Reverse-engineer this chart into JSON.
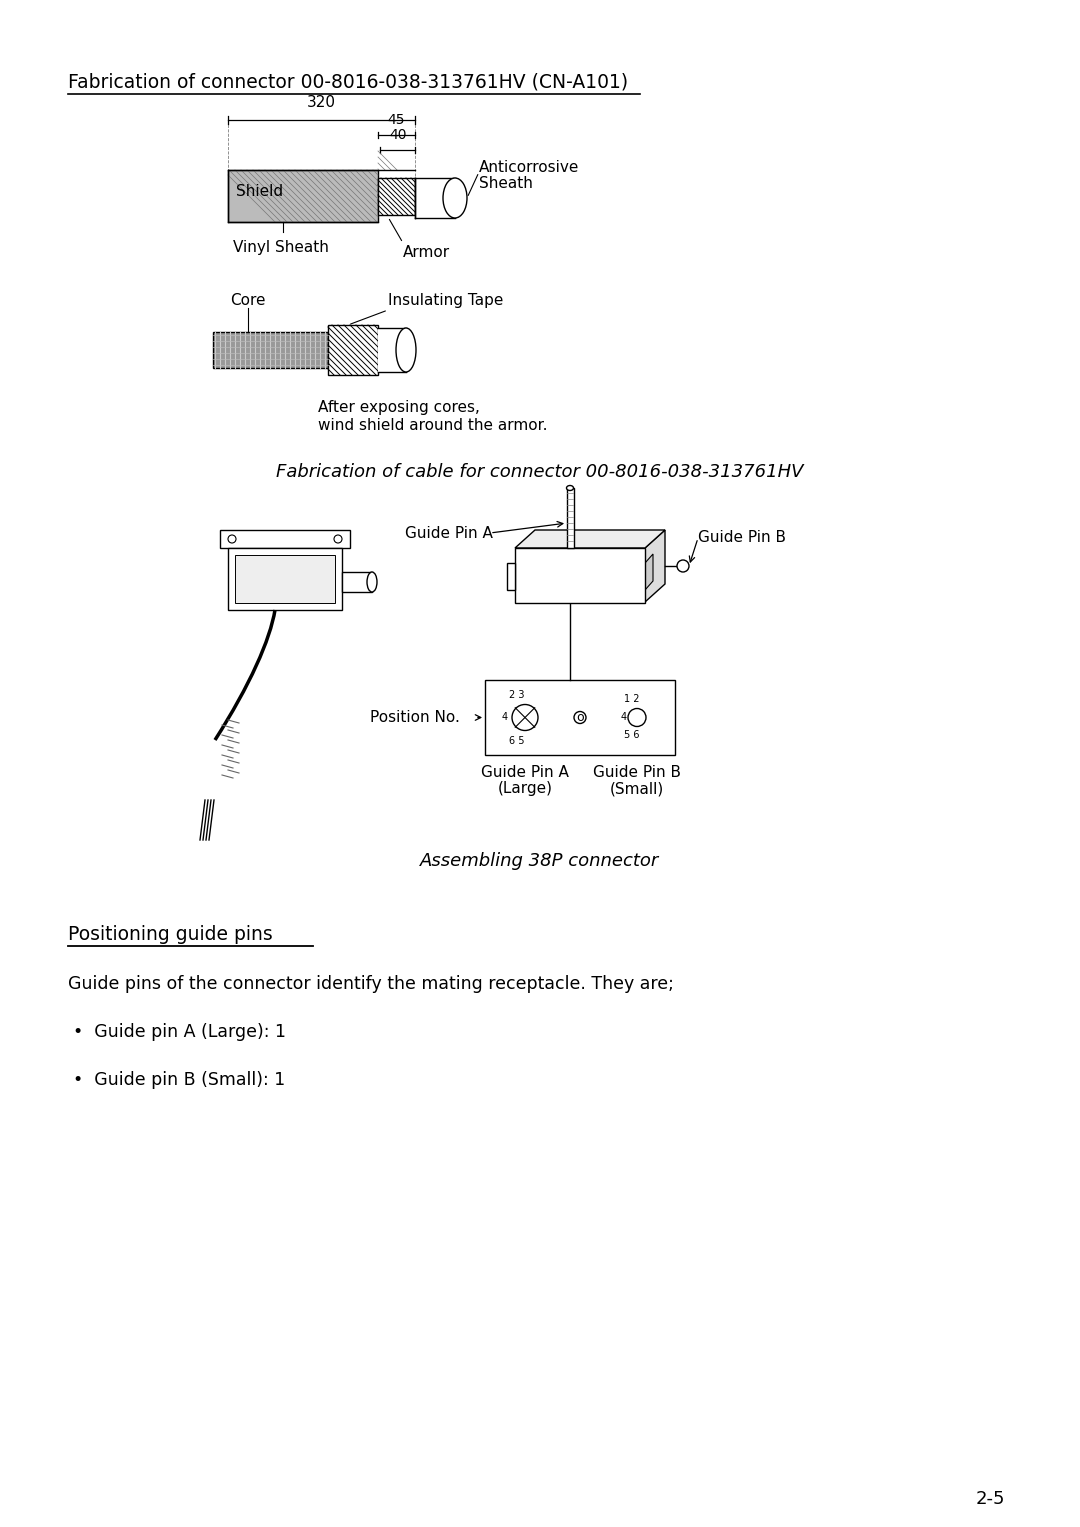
{
  "bg_color": "#ffffff",
  "title": "Fabrication of connector 00-8016-038-313761HV (CN-A101)",
  "cable_caption": "Fabrication of cable for connector 00-8016-038-313761HV",
  "assembling_caption": "Assembling 38P connector",
  "section2_title": "Positioning guide pins",
  "section2_body": "Guide pins of the connector identify the mating receptacle. They are;",
  "bullet1": "•  Guide pin A (Large): 1",
  "bullet2": "•  Guide pin B (Small): 1",
  "page_num": "2-5",
  "dim_320": "320",
  "dim_45": "45",
  "dim_40": "40",
  "label_shield": "Shield",
  "label_anticorrosive": "Anticorrosive",
  "label_sheath": "Sheath",
  "label_vinyl": "Vinyl Sheath",
  "label_armor": "Armor",
  "label_core": "Core",
  "label_insulating": "Insulating Tape",
  "label_after_line1": "After exposing cores,",
  "label_after_line2": "wind shield around the armor.",
  "label_guide_pin_a": "Guide Pin A",
  "label_guide_pin_b": "Guide Pin B",
  "label_position_no": "Position No.",
  "label_gpa_large_line1": "Guide Pin A",
  "label_gpa_large_line2": "(Large)",
  "label_gpb_small_line1": "Guide Pin B",
  "label_gpb_small_line2": "(Small)"
}
